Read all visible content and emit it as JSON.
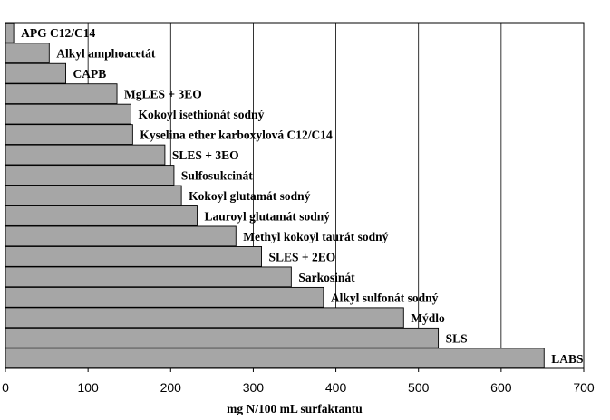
{
  "chart_data": {
    "type": "bar",
    "orientation": "horizontal",
    "categories": [
      "APG C12/C14",
      "Alkyl amphoacetát",
      "CAPB",
      "MgLES + 3EO",
      "Kokoyl isethionát sodný",
      "Kyselina ether karboxylová C12/C14",
      "SLES + 3EO",
      "Sulfosukcinát",
      "Kokoyl glutamát sodný",
      "Lauroyl glutamát sodný",
      "Methyl kokoyl taurát sodný",
      "SLES + 2EO",
      "Sarkosinát",
      "Alkyl sulfonát sodný",
      "Mýdlo",
      "SLS",
      "LABS"
    ],
    "values": [
      10,
      53,
      73,
      135,
      152,
      154,
      193,
      204,
      213,
      232,
      279,
      310,
      346,
      385,
      482,
      524,
      652
    ],
    "xlabel": "mg N/100 mL surfaktantu",
    "xlim": [
      0,
      700
    ],
    "xticks": [
      0,
      100,
      200,
      300,
      400,
      500,
      600,
      700
    ],
    "grid": "vertical",
    "bar_color": "#a6a6a6",
    "bar_edge_color": "#000000"
  }
}
